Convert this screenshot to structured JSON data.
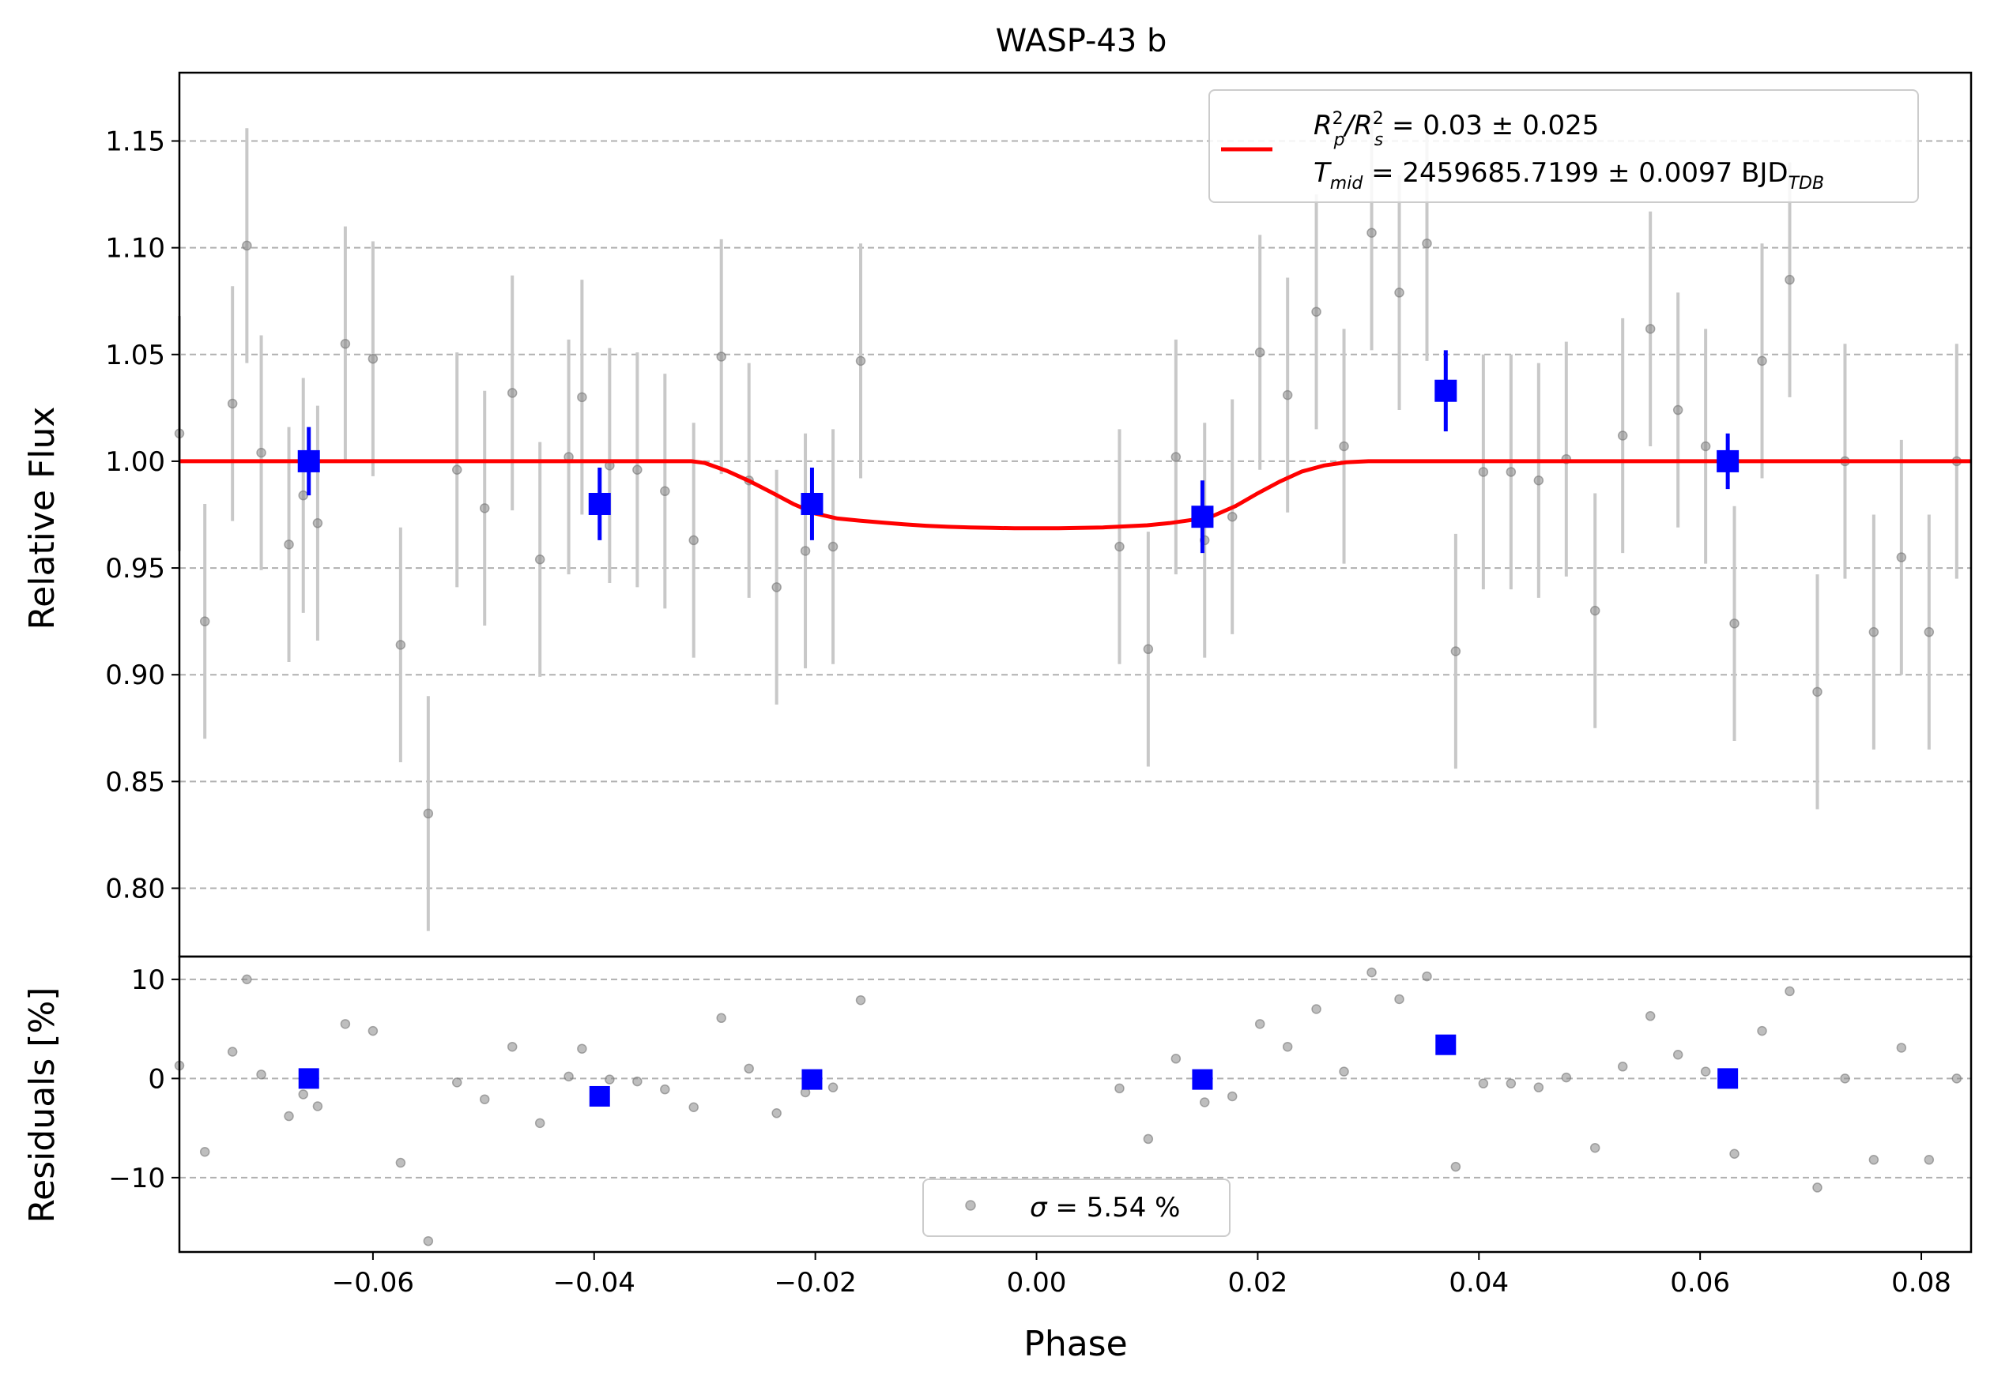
{
  "chart_data": [
    {
      "type": "scatter",
      "panel": "light-curve",
      "title": "WASP-43 b",
      "xlabel": "Phase",
      "ylabel": "Relative Flux",
      "xlim": [
        -0.0775,
        0.0845
      ],
      "ylim": [
        0.768,
        1.182
      ],
      "x_ticks": [
        -0.06,
        -0.04,
        -0.02,
        0.0,
        0.02,
        0.04,
        0.06,
        0.08
      ],
      "x_tick_labels": [
        "−0.06",
        "−0.04",
        "−0.02",
        "0.00",
        "0.02",
        "0.04",
        "0.06",
        "0.08"
      ],
      "y_ticks": [
        0.8,
        0.85,
        0.9,
        0.95,
        1.0,
        1.05,
        1.1,
        1.15
      ],
      "y_tick_labels": [
        "0.80",
        "0.85",
        "0.90",
        "0.95",
        "1.00",
        "1.05",
        "1.10",
        "1.15"
      ],
      "grid": "horizontal dashed",
      "legend_position": "upper right",
      "legend_lines": [
        {
          "a": "R",
          "a_sup": "2",
          "a_sub": "p",
          "b": "/R",
          "b_sup": "2",
          "b_sub": "s",
          "rest": " = 0.03 ± 0.025"
        },
        {
          "a": "T",
          "a_sub": "mid",
          "rest": " = 2459685.7199 ± 0.0097 BJD",
          "rest_sub": "TDB"
        }
      ],
      "colors": {
        "raw": "#888888",
        "raw_err": "#c8c8c8",
        "binned": "#0000ff",
        "model": "#ff0000",
        "grid": "#b0b0b0"
      },
      "raw_points": {
        "x": [
          -0.0775,
          -0.0752,
          -0.0727,
          -0.0714,
          -0.0701,
          -0.0676,
          -0.0663,
          -0.065,
          -0.0625,
          -0.06,
          -0.0575,
          -0.055,
          -0.0524,
          -0.0499,
          -0.0474,
          -0.0449,
          -0.0423,
          -0.0411,
          -0.0386,
          -0.0361,
          -0.0336,
          -0.031,
          -0.0285,
          -0.026,
          -0.0235,
          -0.0209,
          -0.0184,
          -0.0159,
          0.0075,
          0.0101,
          0.0126,
          0.0152,
          0.0177,
          0.0202,
          0.0227,
          0.0253,
          0.0278,
          0.0303,
          0.0328,
          0.0353,
          0.0379,
          0.0404,
          0.0429,
          0.0454,
          0.0479,
          0.0505,
          0.053,
          0.0555,
          0.058,
          0.0605,
          0.0631,
          0.0656,
          0.0681,
          0.0706,
          0.0731,
          0.0757,
          0.0782,
          0.0807,
          0.0832
        ],
        "y": [
          1.013,
          0.925,
          1.027,
          1.101,
          1.004,
          0.961,
          0.984,
          0.971,
          1.055,
          1.048,
          0.914,
          0.835,
          0.996,
          0.978,
          1.032,
          0.954,
          1.002,
          1.03,
          0.998,
          0.996,
          0.986,
          0.963,
          1.049,
          0.991,
          0.941,
          0.958,
          0.96,
          1.047,
          0.96,
          0.912,
          1.002,
          0.963,
          0.974,
          1.051,
          1.031,
          1.07,
          1.007,
          1.107,
          1.079,
          1.102,
          0.911,
          0.995,
          0.995,
          0.991,
          1.001,
          0.93,
          1.012,
          1.062,
          1.024,
          1.007,
          0.924,
          1.047,
          1.085,
          0.892,
          1.0,
          0.92,
          0.955,
          0.92,
          1.0
        ],
        "yerr": 0.055
      },
      "binned_points": {
        "x": [
          -0.0658,
          -0.0395,
          -0.0203,
          0.015,
          0.037,
          0.0625
        ],
        "y": [
          1.0,
          0.98,
          0.98,
          0.974,
          1.033,
          1.0
        ],
        "yerr": [
          0.016,
          0.017,
          0.017,
          0.017,
          0.019,
          0.013
        ]
      },
      "model": {
        "name": "transit model",
        "x": [
          -0.0775,
          -0.0312,
          -0.03,
          -0.028,
          -0.026,
          -0.024,
          -0.022,
          -0.02,
          -0.018,
          -0.016,
          -0.014,
          -0.012,
          -0.01,
          -0.008,
          -0.006,
          -0.004,
          -0.002,
          0.0,
          0.002,
          0.004,
          0.006,
          0.008,
          0.01,
          0.012,
          0.014,
          0.016,
          0.018,
          0.02,
          0.022,
          0.024,
          0.026,
          0.028,
          0.03,
          0.0312,
          0.0845
        ],
        "y": [
          1.0,
          1.0,
          0.9992,
          0.9955,
          0.9908,
          0.9855,
          0.98,
          0.9755,
          0.9732,
          0.9722,
          0.9713,
          0.9705,
          0.9698,
          0.9693,
          0.969,
          0.9688,
          0.9686,
          0.9686,
          0.9686,
          0.9688,
          0.969,
          0.9695,
          0.97,
          0.971,
          0.9725,
          0.9745,
          0.979,
          0.985,
          0.9905,
          0.9952,
          0.998,
          0.9995,
          1.0,
          1.0,
          1.0
        ]
      }
    },
    {
      "type": "scatter",
      "panel": "residuals",
      "xlabel": "Phase",
      "ylabel": "Residuals [%]",
      "xlim": [
        -0.0775,
        0.0845
      ],
      "ylim": [
        -17.5,
        12.3
      ],
      "y_ticks": [
        -10,
        0,
        10
      ],
      "y_tick_labels": [
        "−10",
        "0",
        "10"
      ],
      "grid": "horizontal dashed",
      "legend_position": "lower center",
      "legend_label": " = 5.54 %",
      "legend_symbol": "σ",
      "raw_points": {
        "y": [
          1.3,
          -7.4,
          2.7,
          10.0,
          0.4,
          -3.8,
          -1.6,
          -2.8,
          5.5,
          4.8,
          -8.5,
          -16.4,
          -0.4,
          -2.1,
          3.2,
          -4.5,
          0.2,
          3.0,
          -0.1,
          -0.3,
          -1.1,
          -2.9,
          6.1,
          1.0,
          -3.5,
          -1.4,
          -0.9,
          7.9,
          -1.0,
          -6.1,
          2.0,
          -2.4,
          -1.8,
          5.5,
          3.2,
          7.0,
          0.7,
          10.7,
          8.0,
          10.3,
          -8.9,
          -0.5,
          -0.5,
          -0.9,
          0.1,
          -7.0,
          1.2,
          6.3,
          2.4,
          0.7,
          -7.6,
          4.8,
          8.8,
          -11.0,
          0.0,
          -8.2,
          3.1,
          -8.2,
          0.0
        ]
      },
      "binned_points": {
        "y": [
          0.0,
          -1.8,
          -0.1,
          -0.1,
          3.4,
          0.0
        ]
      }
    }
  ]
}
